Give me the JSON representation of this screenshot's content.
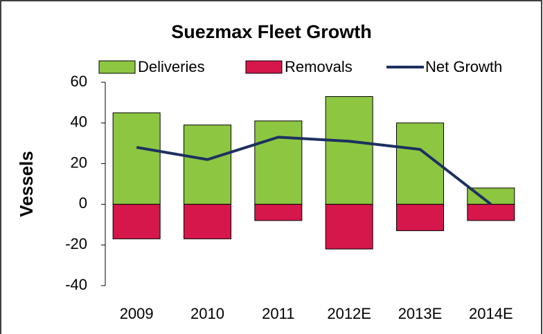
{
  "chart_data": {
    "type": "bar",
    "title": "Suezmax Fleet Growth",
    "y_label": "Vessels",
    "categories": [
      "2009",
      "2010",
      "2011",
      "2012E",
      "2013E",
      "2014E"
    ],
    "series": [
      {
        "name": "Deliveries",
        "color": "#8dc641",
        "values": [
          45,
          39,
          41,
          53,
          40,
          8
        ]
      },
      {
        "name": "Removals",
        "color": "#d5174b",
        "values": [
          -17,
          -17,
          -8,
          -22,
          -13,
          -8
        ]
      },
      {
        "name": "Net Growth",
        "type": "line",
        "color": "#1d3060",
        "values": [
          28,
          22,
          33,
          31,
          27,
          0
        ]
      }
    ],
    "ylim": [
      -40,
      60
    ],
    "yticks": [
      -40,
      -20,
      0,
      20,
      40,
      60
    ],
    "grid": false,
    "legend": "top"
  }
}
